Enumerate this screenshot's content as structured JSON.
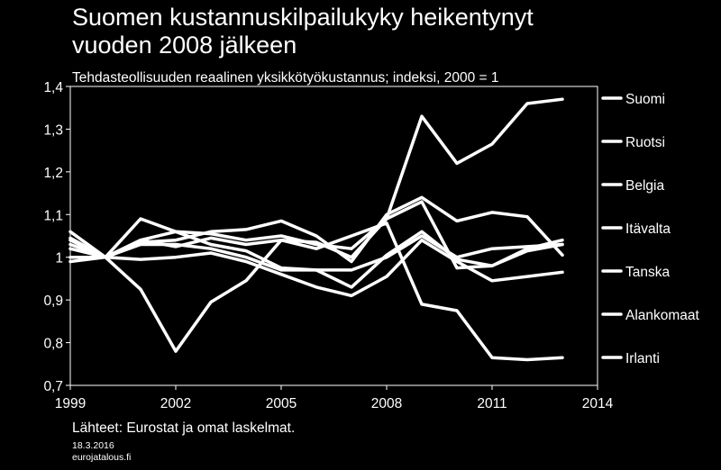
{
  "chart_data": {
    "type": "line",
    "title_line1": "Suomen kustannuskilpailukyky heikentynyt",
    "title_line2": "vuoden 2008 jälkeen",
    "subtitle": "Tehdasteollisuuden reaalinen yksikkötyökustannus; indeksi, 2000 = 1",
    "xlabel": "",
    "ylabel": "",
    "xlim": [
      1999,
      2014
    ],
    "ylim": [
      0.7,
      1.4
    ],
    "x_ticks": [
      1999,
      2002,
      2005,
      2008,
      2011,
      2014
    ],
    "x_tick_labels": [
      "1999",
      "2002",
      "2005",
      "2008",
      "2011",
      "2014"
    ],
    "y_ticks": [
      0.7,
      0.8,
      0.9,
      1.0,
      1.1,
      1.2,
      1.3,
      1.4
    ],
    "y_tick_labels": [
      "0,7",
      "0,8",
      "0,9",
      "1",
      "1,1",
      "1,2",
      "1,3",
      "1,4"
    ],
    "x": [
      1999,
      2000,
      2001,
      2002,
      2003,
      2004,
      2005,
      2006,
      2007,
      2008,
      2009,
      2010,
      2011,
      2012,
      2013
    ],
    "series": [
      {
        "name": "Suomi",
        "values": [
          1.06,
          1.0,
          0.925,
          0.78,
          0.895,
          0.945,
          1.04,
          1.035,
          1.0,
          1.09,
          1.33,
          1.22,
          1.265,
          1.36,
          1.37
        ]
      },
      {
        "name": "Ruotsi",
        "values": [
          1.045,
          1.0,
          1.035,
          1.04,
          1.06,
          1.065,
          1.085,
          1.05,
          0.99,
          1.1,
          1.14,
          1.085,
          1.105,
          1.095,
          1.005
        ]
      },
      {
        "name": "Belgia",
        "values": [
          1.04,
          1.0,
          1.04,
          1.06,
          1.055,
          1.04,
          1.05,
          1.03,
          1.02,
          1.09,
          1.13,
          0.975,
          0.98,
          1.015,
          1.03
        ]
      },
      {
        "name": "Itävalta",
        "values": [
          1.03,
          1.0,
          1.09,
          1.06,
          1.03,
          1.015,
          0.975,
          0.97,
          0.97,
          1.0,
          1.05,
          1.0,
          1.02,
          1.025,
          1.03
        ]
      },
      {
        "name": "Tanska",
        "values": [
          0.99,
          1.0,
          0.995,
          1.0,
          1.01,
          0.99,
          0.96,
          0.93,
          0.91,
          0.955,
          1.04,
          0.99,
          0.945,
          0.955,
          0.965
        ]
      },
      {
        "name": "Alankomaat",
        "values": [
          1.02,
          1.0,
          1.03,
          1.03,
          1.02,
          1.0,
          0.97,
          0.97,
          0.93,
          1.005,
          1.06,
          0.995,
          0.98,
          1.02,
          1.04
        ]
      },
      {
        "name": "Irlanti",
        "values": [
          1.0,
          1.0,
          1.04,
          1.025,
          1.045,
          1.03,
          1.04,
          1.02,
          1.05,
          1.08,
          0.89,
          0.875,
          0.765,
          0.76,
          0.765
        ]
      }
    ],
    "legend_position": "right",
    "colors": {
      "background": "#000000",
      "foreground": "#ffffff",
      "line": "#ffffff"
    }
  },
  "footer": {
    "source": "Lähteet: Eurostat ja omat laskelmat.",
    "date": "18.3.2016",
    "site": "eurojatalous.fi"
  }
}
